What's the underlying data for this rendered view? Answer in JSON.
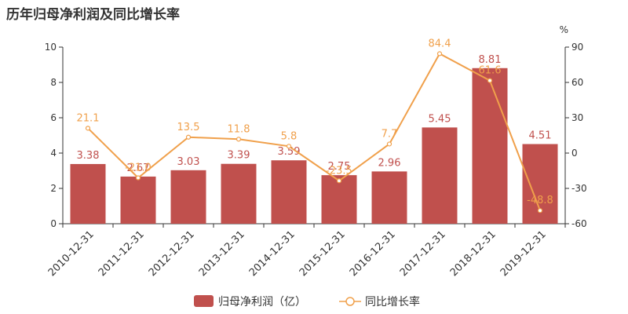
{
  "page": {
    "title": "历年归母净利润及同比增长率"
  },
  "colors": {
    "bar": "#c0504d",
    "line": "#f0a04b",
    "axis": "#333333",
    "grid": "#e6e6e6"
  },
  "chart_data": {
    "type": "bar",
    "title": "历年归母净利润及同比增长率",
    "categories": [
      "2010-12-31",
      "2011-12-31",
      "2012-12-31",
      "2013-12-31",
      "2014-12-31",
      "2015-12-31",
      "2016-12-31",
      "2017-12-31",
      "2018-12-31",
      "2019-12-31"
    ],
    "series": [
      {
        "name": "归母净利润（亿）",
        "type": "bar",
        "axis": "left",
        "values": [
          3.38,
          2.67,
          3.03,
          3.39,
          3.59,
          2.75,
          2.96,
          5.45,
          8.81,
          4.51
        ],
        "labels": [
          "3.38",
          "2.67",
          "3.03",
          "3.39",
          "3.59",
          "2.75",
          "2.96",
          "5.45",
          "8.81",
          "4.51"
        ]
      },
      {
        "name": "同比增长率",
        "type": "line",
        "axis": "right",
        "values": [
          21.1,
          -21.0,
          13.5,
          11.8,
          5.8,
          -23.5,
          7.7,
          84.4,
          61.6,
          -48.8
        ],
        "labels": [
          "21.1",
          "-21.0",
          "13.5",
          "11.8",
          "5.8",
          "-23.5",
          "7.7",
          "84.4",
          "61.6",
          "-48.8"
        ]
      }
    ],
    "left_axis": {
      "ylim": [
        0,
        10
      ],
      "ticks": [
        "0",
        "2",
        "4",
        "6",
        "8",
        "10"
      ]
    },
    "right_axis": {
      "unit": "%",
      "ylim": [
        -60,
        90
      ],
      "ticks": [
        "-60",
        "-30",
        "0",
        "30",
        "60",
        "90"
      ]
    },
    "grid": false,
    "legend": "bottom"
  }
}
